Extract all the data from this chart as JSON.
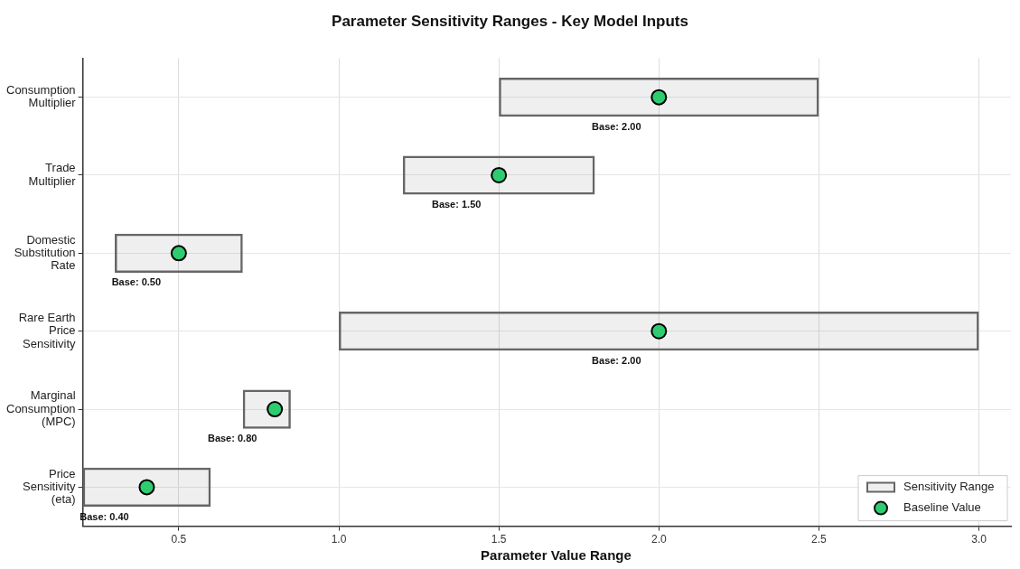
{
  "chart_data": {
    "type": "bar",
    "orientation": "horizontal",
    "title": "Parameter Sensitivity Ranges - Key Model Inputs",
    "xlabel": "Parameter Value Range",
    "categories": [
      "Consumption\nMultiplier",
      "Trade\nMultiplier",
      "Domestic\nSubstitution\nRate",
      "Rare Earth\nPrice\nSensitivity",
      "Marginal\nConsumption\n(MPC)",
      "Price\nSensitivity\n(eta)"
    ],
    "series": [
      {
        "name": "Sensitivity Range",
        "type": "bar",
        "color": "#666666",
        "base": [
          1.5,
          1.2,
          0.3,
          1.0,
          0.7,
          0.2
        ],
        "values": [
          1.0,
          0.6,
          0.4,
          2.0,
          0.15,
          0.4
        ]
      },
      {
        "name": "Baseline Value",
        "type": "scatter",
        "color": "#2ecc71",
        "x": [
          "Consumption\nMultiplier",
          "Trade\nMultiplier",
          "Domestic\nSubstitution\nRate",
          "Rare Earth\nPrice\nSensitivity",
          "Marginal\nConsumption\n(MPC)",
          "Price\nSensitivity\n(eta)"
        ],
        "values": [
          2.0,
          1.5,
          0.5,
          2.0,
          0.8,
          0.4
        ],
        "value_labels": [
          "Base: 2.00",
          "Base: 1.50",
          "Base: 0.50",
          "Base: 2.00",
          "Base: 0.80",
          "Base: 0.40"
        ]
      }
    ],
    "xlim": [
      0.2,
      3.1
    ],
    "xticks": [
      0.5,
      {
        "value": 1,
        "label": "1.0"
      },
      1.5,
      {
        "value": 2,
        "label": "2.0"
      },
      2.5,
      {
        "value": 3,
        "label": "3.0"
      }
    ],
    "grid": true,
    "legend": "bottom right",
    "marker": "circle"
  }
}
